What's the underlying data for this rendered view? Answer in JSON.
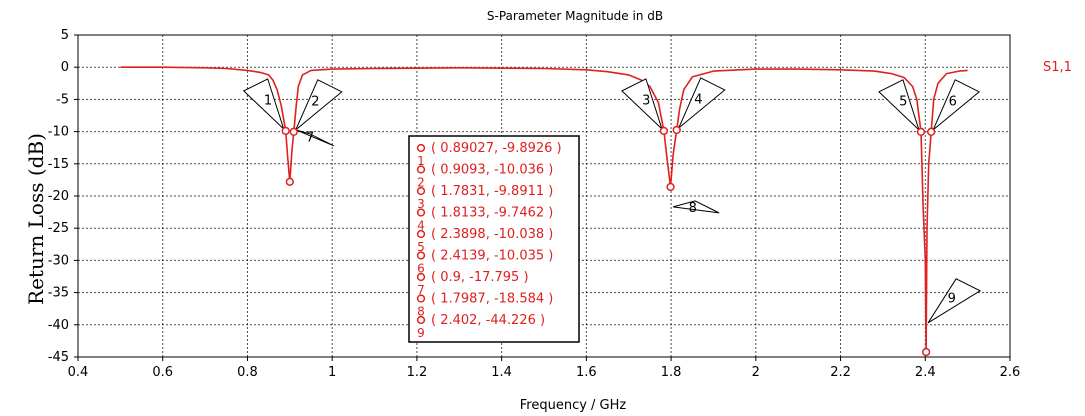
{
  "chart_data": {
    "type": "line",
    "title": "S-Parameter Magnitude in dB",
    "xlabel": "Frequency / GHz",
    "ylabel": "Return Loss (dB)",
    "xlim": [
      0.4,
      2.6
    ],
    "ylim": [
      -45,
      5
    ],
    "x_ticks": [
      "0.4",
      "0.6",
      "0.8",
      "1",
      "1.2",
      "1.4",
      "1.6",
      "1.8",
      "2",
      "2.2",
      "2.4",
      "2.6"
    ],
    "y_ticks": [
      "5",
      "0",
      "-5",
      "-10",
      "-15",
      "-20",
      "-25",
      "-30",
      "-35",
      "-40",
      "-45"
    ],
    "grid": true,
    "series": [
      {
        "name": "S1,1",
        "color": "#e02020",
        "x": [
          0.5,
          0.6,
          0.7,
          0.75,
          0.8,
          0.83,
          0.85,
          0.86,
          0.87,
          0.88,
          0.89027,
          0.895,
          0.9,
          0.905,
          0.9093,
          0.915,
          0.92,
          0.93,
          0.95,
          1.0,
          1.1,
          1.3,
          1.5,
          1.6,
          1.65,
          1.7,
          1.73,
          1.75,
          1.77,
          1.7831,
          1.79,
          1.7987,
          1.805,
          1.8133,
          1.82,
          1.83,
          1.85,
          1.9,
          2.0,
          2.1,
          2.2,
          2.28,
          2.32,
          2.35,
          2.37,
          2.38,
          2.3898,
          2.395,
          2.4,
          2.402,
          2.404,
          2.408,
          2.4139,
          2.42,
          2.43,
          2.45,
          2.48,
          2.5
        ],
        "y": [
          0,
          0,
          -0.1,
          -0.2,
          -0.5,
          -0.8,
          -1.2,
          -2.0,
          -3.5,
          -6.0,
          -9.8926,
          -14.0,
          -17.795,
          -13.0,
          -10.036,
          -6.0,
          -3.0,
          -1.2,
          -0.5,
          -0.3,
          -0.2,
          -0.1,
          -0.2,
          -0.4,
          -0.7,
          -1.2,
          -2.0,
          -3.0,
          -5.5,
          -9.8911,
          -14.0,
          -18.584,
          -13.5,
          -9.7462,
          -6.5,
          -3.5,
          -1.5,
          -0.6,
          -0.3,
          -0.3,
          -0.4,
          -0.6,
          -1.0,
          -1.6,
          -3.0,
          -5.0,
          -10.038,
          -22.0,
          -30.0,
          -44.226,
          -25.0,
          -15.0,
          -10.035,
          -5.0,
          -2.5,
          -1.0,
          -0.6,
          -0.5
        ]
      }
    ],
    "markers": [
      {
        "id": "1",
        "x": 0.89027,
        "y": -9.8926
      },
      {
        "id": "2",
        "x": 0.9093,
        "y": -10.036
      },
      {
        "id": "3",
        "x": 1.7831,
        "y": -9.8911
      },
      {
        "id": "4",
        "x": 1.8133,
        "y": -9.7462
      },
      {
        "id": "5",
        "x": 2.3898,
        "y": -10.038
      },
      {
        "id": "6",
        "x": 2.4139,
        "y": -10.035
      },
      {
        "id": "7",
        "x": 0.9,
        "y": -17.795
      },
      {
        "id": "8",
        "x": 1.7987,
        "y": -18.584
      },
      {
        "id": "9",
        "x": 2.402,
        "y": -44.226
      }
    ],
    "marker_table": [
      {
        "num": "1",
        "text": "( 0.89027, -9.8926 )"
      },
      {
        "num": "2",
        "text": "( 0.9093, -10.036 )"
      },
      {
        "num": "3",
        "text": "( 1.7831, -9.8911 )"
      },
      {
        "num": "4",
        "text": "( 1.8133, -9.7462 )"
      },
      {
        "num": "5",
        "text": "( 2.3898, -10.038 )"
      },
      {
        "num": "6",
        "text": "( 2.4139, -10.035 )"
      },
      {
        "num": "7",
        "text": "( 0.9, -17.795 )"
      },
      {
        "num": "8",
        "text": "( 1.7987, -18.584 )"
      },
      {
        "num": "9",
        "text": "( 2.402, -44.226 )"
      }
    ]
  }
}
